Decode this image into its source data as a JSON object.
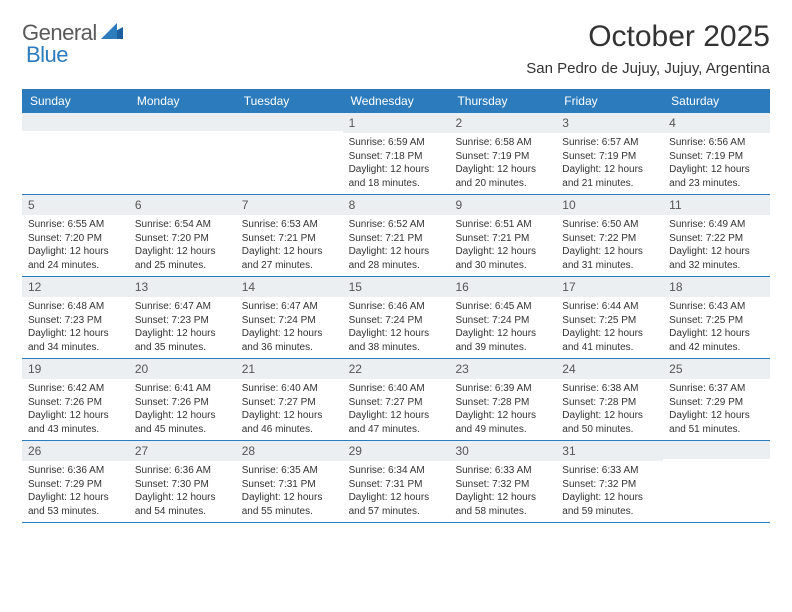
{
  "colors": {
    "header_bg": "#2b7bbd",
    "daynum_bg": "#eceff1",
    "row_border": "#2b7bbd",
    "text": "#333333",
    "logo_gray": "#5a5a5a",
    "logo_blue": "#2b7bbd",
    "page_bg": "#ffffff"
  },
  "typography": {
    "title_fontsize": 30,
    "location_fontsize": 15,
    "weekday_fontsize": 12,
    "daynum_fontsize": 12,
    "cell_fontsize": 10
  },
  "logo": {
    "text1": "General",
    "text2": "Blue"
  },
  "title": "October 2025",
  "location": "San Pedro de Jujuy, Jujuy, Argentina",
  "weekdays": [
    "Sunday",
    "Monday",
    "Tuesday",
    "Wednesday",
    "Thursday",
    "Friday",
    "Saturday"
  ],
  "weeks": [
    [
      {
        "day": "",
        "sunrise": "",
        "sunset": "",
        "daylight": ""
      },
      {
        "day": "",
        "sunrise": "",
        "sunset": "",
        "daylight": ""
      },
      {
        "day": "",
        "sunrise": "",
        "sunset": "",
        "daylight": ""
      },
      {
        "day": "1",
        "sunrise": "Sunrise: 6:59 AM",
        "sunset": "Sunset: 7:18 PM",
        "daylight": "Daylight: 12 hours and 18 minutes."
      },
      {
        "day": "2",
        "sunrise": "Sunrise: 6:58 AM",
        "sunset": "Sunset: 7:19 PM",
        "daylight": "Daylight: 12 hours and 20 minutes."
      },
      {
        "day": "3",
        "sunrise": "Sunrise: 6:57 AM",
        "sunset": "Sunset: 7:19 PM",
        "daylight": "Daylight: 12 hours and 21 minutes."
      },
      {
        "day": "4",
        "sunrise": "Sunrise: 6:56 AM",
        "sunset": "Sunset: 7:19 PM",
        "daylight": "Daylight: 12 hours and 23 minutes."
      }
    ],
    [
      {
        "day": "5",
        "sunrise": "Sunrise: 6:55 AM",
        "sunset": "Sunset: 7:20 PM",
        "daylight": "Daylight: 12 hours and 24 minutes."
      },
      {
        "day": "6",
        "sunrise": "Sunrise: 6:54 AM",
        "sunset": "Sunset: 7:20 PM",
        "daylight": "Daylight: 12 hours and 25 minutes."
      },
      {
        "day": "7",
        "sunrise": "Sunrise: 6:53 AM",
        "sunset": "Sunset: 7:21 PM",
        "daylight": "Daylight: 12 hours and 27 minutes."
      },
      {
        "day": "8",
        "sunrise": "Sunrise: 6:52 AM",
        "sunset": "Sunset: 7:21 PM",
        "daylight": "Daylight: 12 hours and 28 minutes."
      },
      {
        "day": "9",
        "sunrise": "Sunrise: 6:51 AM",
        "sunset": "Sunset: 7:21 PM",
        "daylight": "Daylight: 12 hours and 30 minutes."
      },
      {
        "day": "10",
        "sunrise": "Sunrise: 6:50 AM",
        "sunset": "Sunset: 7:22 PM",
        "daylight": "Daylight: 12 hours and 31 minutes."
      },
      {
        "day": "11",
        "sunrise": "Sunrise: 6:49 AM",
        "sunset": "Sunset: 7:22 PM",
        "daylight": "Daylight: 12 hours and 32 minutes."
      }
    ],
    [
      {
        "day": "12",
        "sunrise": "Sunrise: 6:48 AM",
        "sunset": "Sunset: 7:23 PM",
        "daylight": "Daylight: 12 hours and 34 minutes."
      },
      {
        "day": "13",
        "sunrise": "Sunrise: 6:47 AM",
        "sunset": "Sunset: 7:23 PM",
        "daylight": "Daylight: 12 hours and 35 minutes."
      },
      {
        "day": "14",
        "sunrise": "Sunrise: 6:47 AM",
        "sunset": "Sunset: 7:24 PM",
        "daylight": "Daylight: 12 hours and 36 minutes."
      },
      {
        "day": "15",
        "sunrise": "Sunrise: 6:46 AM",
        "sunset": "Sunset: 7:24 PM",
        "daylight": "Daylight: 12 hours and 38 minutes."
      },
      {
        "day": "16",
        "sunrise": "Sunrise: 6:45 AM",
        "sunset": "Sunset: 7:24 PM",
        "daylight": "Daylight: 12 hours and 39 minutes."
      },
      {
        "day": "17",
        "sunrise": "Sunrise: 6:44 AM",
        "sunset": "Sunset: 7:25 PM",
        "daylight": "Daylight: 12 hours and 41 minutes."
      },
      {
        "day": "18",
        "sunrise": "Sunrise: 6:43 AM",
        "sunset": "Sunset: 7:25 PM",
        "daylight": "Daylight: 12 hours and 42 minutes."
      }
    ],
    [
      {
        "day": "19",
        "sunrise": "Sunrise: 6:42 AM",
        "sunset": "Sunset: 7:26 PM",
        "daylight": "Daylight: 12 hours and 43 minutes."
      },
      {
        "day": "20",
        "sunrise": "Sunrise: 6:41 AM",
        "sunset": "Sunset: 7:26 PM",
        "daylight": "Daylight: 12 hours and 45 minutes."
      },
      {
        "day": "21",
        "sunrise": "Sunrise: 6:40 AM",
        "sunset": "Sunset: 7:27 PM",
        "daylight": "Daylight: 12 hours and 46 minutes."
      },
      {
        "day": "22",
        "sunrise": "Sunrise: 6:40 AM",
        "sunset": "Sunset: 7:27 PM",
        "daylight": "Daylight: 12 hours and 47 minutes."
      },
      {
        "day": "23",
        "sunrise": "Sunrise: 6:39 AM",
        "sunset": "Sunset: 7:28 PM",
        "daylight": "Daylight: 12 hours and 49 minutes."
      },
      {
        "day": "24",
        "sunrise": "Sunrise: 6:38 AM",
        "sunset": "Sunset: 7:28 PM",
        "daylight": "Daylight: 12 hours and 50 minutes."
      },
      {
        "day": "25",
        "sunrise": "Sunrise: 6:37 AM",
        "sunset": "Sunset: 7:29 PM",
        "daylight": "Daylight: 12 hours and 51 minutes."
      }
    ],
    [
      {
        "day": "26",
        "sunrise": "Sunrise: 6:36 AM",
        "sunset": "Sunset: 7:29 PM",
        "daylight": "Daylight: 12 hours and 53 minutes."
      },
      {
        "day": "27",
        "sunrise": "Sunrise: 6:36 AM",
        "sunset": "Sunset: 7:30 PM",
        "daylight": "Daylight: 12 hours and 54 minutes."
      },
      {
        "day": "28",
        "sunrise": "Sunrise: 6:35 AM",
        "sunset": "Sunset: 7:31 PM",
        "daylight": "Daylight: 12 hours and 55 minutes."
      },
      {
        "day": "29",
        "sunrise": "Sunrise: 6:34 AM",
        "sunset": "Sunset: 7:31 PM",
        "daylight": "Daylight: 12 hours and 57 minutes."
      },
      {
        "day": "30",
        "sunrise": "Sunrise: 6:33 AM",
        "sunset": "Sunset: 7:32 PM",
        "daylight": "Daylight: 12 hours and 58 minutes."
      },
      {
        "day": "31",
        "sunrise": "Sunrise: 6:33 AM",
        "sunset": "Sunset: 7:32 PM",
        "daylight": "Daylight: 12 hours and 59 minutes."
      },
      {
        "day": "",
        "sunrise": "",
        "sunset": "",
        "daylight": ""
      }
    ]
  ]
}
